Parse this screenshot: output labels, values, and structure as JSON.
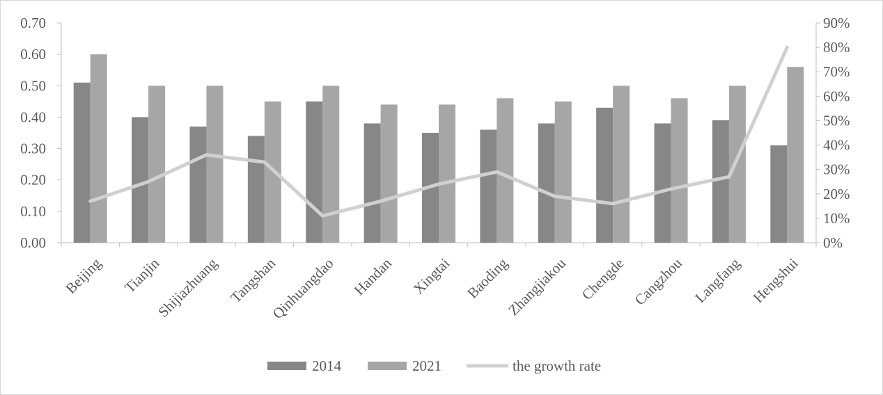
{
  "chart_data": {
    "type": "bar",
    "categories": [
      "Beijing",
      "Tianjin",
      "Shijiazhuang",
      "Tangshan",
      "Qinhuangdao",
      "Handan",
      "Xingtai",
      "Baoding",
      "Zhangjiakou",
      "Chengde",
      "Cangzhou",
      "Langfang",
      "Hengshui"
    ],
    "series": [
      {
        "name": "2014",
        "type": "bar",
        "axis": "left",
        "color": "#878787",
        "values": [
          0.51,
          0.4,
          0.37,
          0.34,
          0.45,
          0.38,
          0.35,
          0.36,
          0.38,
          0.43,
          0.38,
          0.39,
          0.31
        ]
      },
      {
        "name": "2021",
        "type": "bar",
        "axis": "left",
        "color": "#a6a6a6",
        "values": [
          0.6,
          0.5,
          0.5,
          0.45,
          0.5,
          0.44,
          0.44,
          0.46,
          0.45,
          0.5,
          0.46,
          0.5,
          0.56
        ]
      },
      {
        "name": "the growth rate",
        "type": "line",
        "axis": "right",
        "color": "#d0d0d0",
        "values": [
          17,
          25,
          36,
          33,
          11,
          17,
          24,
          29,
          19,
          16,
          22,
          27,
          80
        ]
      }
    ],
    "y_left": {
      "min": 0,
      "max": 0.7,
      "ticks": [
        "0.00",
        "0.10",
        "0.20",
        "0.30",
        "0.40",
        "0.50",
        "0.60",
        "0.70"
      ]
    },
    "y_right": {
      "min": 0,
      "max": 90,
      "unit": "%",
      "ticks": [
        "0%",
        "10%",
        "20%",
        "30%",
        "40%",
        "50%",
        "60%",
        "70%",
        "80%",
        "90%"
      ]
    },
    "title": "",
    "xlabel": "",
    "ylabel": "",
    "grid": false,
    "legend_position": "bottom"
  }
}
